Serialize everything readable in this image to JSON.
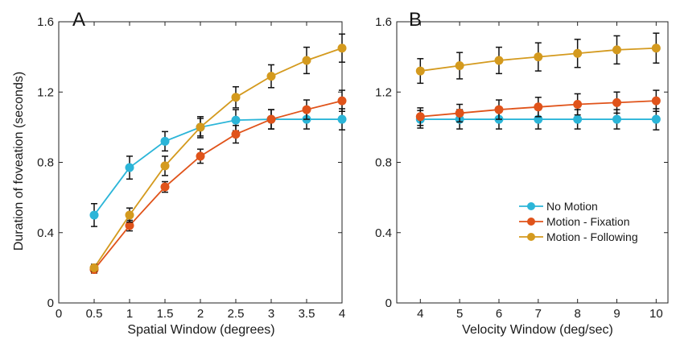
{
  "chart_data": [
    {
      "type": "line",
      "panel_label": "A",
      "xlabel": "Spatial Window (degrees)",
      "ylabel": "Duration of foveation (seconds)",
      "xlim": [
        0,
        4
      ],
      "ylim": [
        0,
        1.6
      ],
      "xticks": [
        "0",
        "0.5",
        "1",
        "1.5",
        "2",
        "2.5",
        "3",
        "3.5",
        "4"
      ],
      "yticks": [
        "0",
        "0.4",
        "0.8",
        "1.2",
        "1.6"
      ],
      "grid": false,
      "x": [
        0.5,
        1,
        1.5,
        2,
        2.5,
        3,
        3.5,
        4
      ],
      "series": [
        {
          "name": "No Motion",
          "color": "#2bb5d8",
          "values": [
            0.5,
            0.77,
            0.92,
            1.0,
            1.04,
            1.045,
            1.045,
            1.045
          ],
          "errors": [
            0.065,
            0.065,
            0.055,
            0.05,
            0.06,
            0.055,
            0.055,
            0.06
          ]
        },
        {
          "name": "Motion - Fixation",
          "color": "#e0531a",
          "values": [
            0.19,
            0.44,
            0.66,
            0.835,
            0.96,
            1.045,
            1.1,
            1.15
          ],
          "errors": [
            0.02,
            0.03,
            0.03,
            0.04,
            0.05,
            0.055,
            0.055,
            0.06
          ]
        },
        {
          "name": "Motion - Following",
          "color": "#d49a1e",
          "values": [
            0.2,
            0.5,
            0.78,
            1.0,
            1.17,
            1.29,
            1.38,
            1.45
          ],
          "errors": [
            0.02,
            0.04,
            0.055,
            0.06,
            0.06,
            0.065,
            0.075,
            0.08
          ]
        }
      ]
    },
    {
      "type": "line",
      "panel_label": "B",
      "xlabel": "Velocity Window (deg/sec)",
      "ylabel": "",
      "xlim": [
        3.4,
        10.3
      ],
      "ylim": [
        0,
        1.6
      ],
      "xticks": [
        "4",
        "5",
        "6",
        "7",
        "8",
        "9",
        "10"
      ],
      "yticks": [
        "0",
        "0.4",
        "0.8",
        "1.2",
        "1.6"
      ],
      "grid": false,
      "legend_position": "lower-right",
      "x": [
        4,
        5,
        6,
        7,
        8,
        9,
        10
      ],
      "series": [
        {
          "name": "No Motion",
          "color": "#2bb5d8",
          "values": [
            1.045,
            1.045,
            1.045,
            1.045,
            1.045,
            1.045,
            1.045
          ],
          "errors": [
            0.05,
            0.055,
            0.055,
            0.055,
            0.055,
            0.055,
            0.06
          ]
        },
        {
          "name": "Motion - Fixation",
          "color": "#e0531a",
          "values": [
            1.06,
            1.08,
            1.1,
            1.115,
            1.13,
            1.14,
            1.15
          ],
          "errors": [
            0.05,
            0.05,
            0.055,
            0.055,
            0.06,
            0.06,
            0.06
          ]
        },
        {
          "name": "Motion - Following",
          "color": "#d49a1e",
          "values": [
            1.32,
            1.35,
            1.38,
            1.4,
            1.42,
            1.44,
            1.45
          ],
          "errors": [
            0.07,
            0.075,
            0.075,
            0.08,
            0.08,
            0.08,
            0.085
          ]
        }
      ]
    }
  ]
}
